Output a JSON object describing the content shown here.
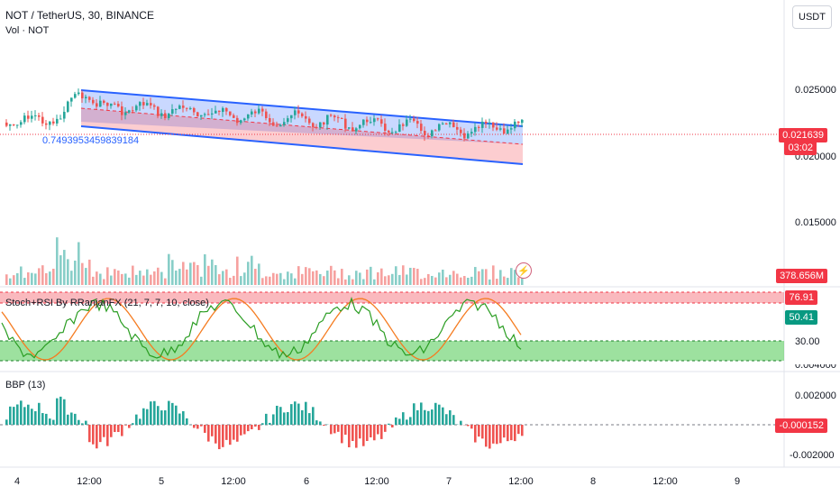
{
  "header": {
    "symbol_line": "NOT / TetherUS, 30, BINANCE",
    "volume_label": "Vol · NOT",
    "currency_button": "USDT"
  },
  "price_axis": {
    "labels": [
      "0.025000",
      "0.020000",
      "0.015000"
    ]
  },
  "price_badge": {
    "price": "0.021639",
    "countdown": "03:02",
    "color": "#f23645"
  },
  "volume_badge": {
    "value": "378.656M",
    "color": "#f23645"
  },
  "channel_annotation": "0.7493953459839184",
  "stoch_rsi": {
    "title": "Stoch+RSI By RRanjanFX (21, 7, 7, 10, close)",
    "value_upper": "76.91",
    "value_lower": "50.41",
    "level_label": "30.00",
    "axis_cut_label": "0.004000",
    "upper_color": "#f23645",
    "lower_color": "#089981"
  },
  "bbp": {
    "title": "BBP (13)",
    "axis_labels": [
      "0.002000",
      "-0.002000"
    ],
    "value": "-0.000152",
    "value_color": "#f23645"
  },
  "time_axis": {
    "labels": [
      "4",
      "12:00",
      "5",
      "12:00",
      "6",
      "12:00",
      "7",
      "12:00",
      "8",
      "12:00",
      "9"
    ]
  },
  "colors": {
    "bull": "#26a69a",
    "bear": "#ef5350",
    "channel_line": "#2962ff",
    "stoch_k": "#2a9d22",
    "stoch_d": "#f57c21"
  },
  "icons": {
    "flash": "lightning-icon"
  }
}
